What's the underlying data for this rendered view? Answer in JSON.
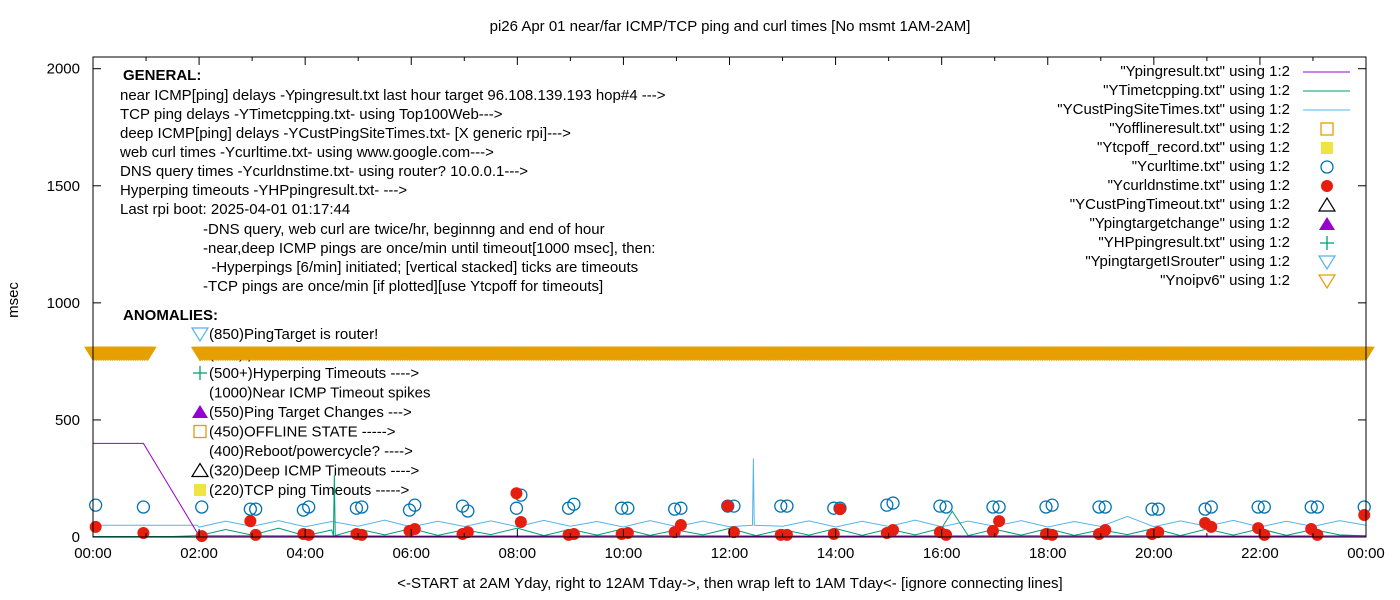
{
  "chart_data": {
    "type": "line",
    "title": "pi26 Apr 01  near/far ICMP/TCP ping and curl times [No msmt 1AM-2AM]",
    "xlabel": "<-START at 2AM Yday, right to 12AM Tday->, then wrap left to 1AM Tday<- [ignore connecting lines]",
    "ylabel": "msec",
    "xlim": [
      "00:00",
      "24:00"
    ],
    "ylim": [
      0,
      2050
    ],
    "x_ticks": [
      "00:00",
      "02:00",
      "04:00",
      "06:00",
      "08:00",
      "10:00",
      "12:00",
      "14:00",
      "16:00",
      "18:00",
      "20:00",
      "22:00",
      "00:00"
    ],
    "y_ticks": [
      0,
      500,
      1000,
      1500,
      2000
    ],
    "grid": false,
    "legend_placement": "top-right",
    "colors": {
      "ypingresult": "#9400d3",
      "ytimetcpping": "#009e73",
      "ycustpingsitetimes": "#56b4e9",
      "yofflineresult": "#e69f00",
      "ytcpoff": "#f0e442",
      "ycurltime": "#0072b2",
      "ycurldnstime": "#e51e10",
      "ycustpingtimeout": "#000000",
      "ypingtargetchange": "#9400d3",
      "yhppingresult": "#009e73",
      "ypingtargetisrouter": "#56b4e9",
      "ynoipv6": "#e69f00"
    },
    "legend": [
      {
        "label": "\"Ypingresult.txt\" using 1:2",
        "style": "line",
        "color": "#9400d3"
      },
      {
        "label": "\"YTimetcpping.txt\" using 1:2",
        "style": "line",
        "color": "#009e73"
      },
      {
        "label": "\"YCustPingSiteTimes.txt\" using 1:2",
        "style": "line",
        "color": "#56b4e9"
      },
      {
        "label": "\"Yofflineresult.txt\" using 1:2",
        "style": "open-square",
        "color": "#e69f00"
      },
      {
        "label": "\"Ytcpoff_record.txt\" using 1:2",
        "style": "filled-square",
        "color": "#f0e442"
      },
      {
        "label": "\"Ycurltime.txt\" using 1:2",
        "style": "open-circle",
        "color": "#0072b2"
      },
      {
        "label": "\"Ycurldnstime.txt\" using 1:2",
        "style": "filled-circle",
        "color": "#e51e10"
      },
      {
        "label": "\"YCustPingTimeout.txt\" using 1:2",
        "style": "open-triangle",
        "color": "#000000"
      },
      {
        "label": "\"Ypingtargetchange\" using 1:2",
        "style": "filled-triangle",
        "color": "#9400d3"
      },
      {
        "label": "\"YHPpingresult.txt\" using 1:2",
        "style": "plus",
        "color": "#009e73"
      },
      {
        "label": "\"YpingtargetISrouter\" using 1:2",
        "style": "open-down-triangle",
        "color": "#56b4e9"
      },
      {
        "label": "\"Ynoipv6\" using 1:2",
        "style": "open-down-triangle",
        "color": "#e69f00"
      }
    ],
    "series": {
      "ypingresult": [
        [
          "00:00",
          400
        ],
        [
          "00:57",
          400
        ],
        [
          "02:00",
          5
        ],
        [
          "06:00",
          4
        ],
        [
          "10:00",
          5
        ],
        [
          "14:00",
          4
        ],
        [
          "18:00",
          5
        ],
        [
          "22:00",
          4
        ],
        [
          "24:00",
          5
        ]
      ],
      "ytimetcpping": [
        [
          "00:00",
          2
        ],
        [
          "01:30",
          2
        ],
        [
          "02:00",
          6
        ],
        [
          "02:30",
          32
        ],
        [
          "03:00",
          8
        ],
        [
          "03:30",
          38
        ],
        [
          "04:00",
          5
        ],
        [
          "04:30",
          30
        ],
        [
          "04:32",
          6
        ],
        [
          "04:33",
          265
        ],
        [
          "04:34",
          6
        ],
        [
          "05:00",
          34
        ],
        [
          "05:30",
          9
        ],
        [
          "06:00",
          36
        ],
        [
          "06:30",
          7
        ],
        [
          "07:00",
          31
        ],
        [
          "07:30",
          10
        ],
        [
          "08:00",
          38
        ],
        [
          "08:30",
          6
        ],
        [
          "09:00",
          33
        ],
        [
          "09:30",
          8
        ],
        [
          "10:00",
          35
        ],
        [
          "10:30",
          7
        ],
        [
          "11:00",
          30
        ],
        [
          "11:30",
          9
        ],
        [
          "12:00",
          37
        ],
        [
          "12:30",
          6
        ],
        [
          "13:00",
          32
        ],
        [
          "13:30",
          8
        ],
        [
          "14:00",
          36
        ],
        [
          "14:30",
          7
        ],
        [
          "15:00",
          34
        ],
        [
          "15:30",
          9
        ],
        [
          "16:00",
          38
        ],
        [
          "16:12",
          110
        ],
        [
          "16:30",
          6
        ],
        [
          "17:00",
          33
        ],
        [
          "17:30",
          8
        ],
        [
          "18:00",
          36
        ],
        [
          "18:30",
          7
        ],
        [
          "19:00",
          31
        ],
        [
          "19:30",
          10
        ],
        [
          "20:00",
          37
        ],
        [
          "20:30",
          6
        ],
        [
          "21:00",
          34
        ],
        [
          "21:30",
          8
        ],
        [
          "22:00",
          35
        ],
        [
          "22:30",
          7
        ],
        [
          "23:00",
          32
        ],
        [
          "23:30",
          9
        ],
        [
          "24:00",
          5
        ]
      ],
      "ycustpingsitetimes": [
        [
          "00:00",
          50
        ],
        [
          "01:58",
          50
        ],
        [
          "02:00",
          42
        ],
        [
          "02:30",
          68
        ],
        [
          "03:00",
          45
        ],
        [
          "03:30",
          70
        ],
        [
          "04:00",
          44
        ],
        [
          "04:30",
          66
        ],
        [
          "05:00",
          46
        ],
        [
          "05:30",
          72
        ],
        [
          "06:00",
          43
        ],
        [
          "06:30",
          67
        ],
        [
          "07:00",
          45
        ],
        [
          "07:30",
          69
        ],
        [
          "08:00",
          44
        ],
        [
          "08:30",
          71
        ],
        [
          "09:00",
          46
        ],
        [
          "09:30",
          66
        ],
        [
          "10:00",
          43
        ],
        [
          "10:30",
          70
        ],
        [
          "11:00",
          45
        ],
        [
          "11:30",
          68
        ],
        [
          "12:00",
          44
        ],
        [
          "12:26",
          50
        ],
        [
          "12:27",
          335
        ],
        [
          "12:28",
          50
        ],
        [
          "13:00",
          46
        ],
        [
          "13:30",
          69
        ],
        [
          "14:00",
          43
        ],
        [
          "14:30",
          67
        ],
        [
          "15:00",
          45
        ],
        [
          "15:30",
          72
        ],
        [
          "16:00",
          44
        ],
        [
          "16:30",
          68
        ],
        [
          "17:00",
          46
        ],
        [
          "17:30",
          70
        ],
        [
          "18:00",
          43
        ],
        [
          "18:30",
          66
        ],
        [
          "19:00",
          45
        ],
        [
          "19:30",
          88
        ],
        [
          "20:00",
          44
        ],
        [
          "20:30",
          69
        ],
        [
          "21:00",
          46
        ],
        [
          "21:30",
          71
        ],
        [
          "22:00",
          43
        ],
        [
          "22:30",
          67
        ],
        [
          "23:00",
          45
        ],
        [
          "23:30",
          70
        ],
        [
          "24:00",
          50
        ]
      ],
      "ycurltime": [
        [
          "00:03",
          136
        ],
        [
          "00:57",
          128
        ],
        [
          "02:03",
          128
        ],
        [
          "02:58",
          119
        ],
        [
          "03:04",
          119
        ],
        [
          "03:58",
          115
        ],
        [
          "04:04",
          128
        ],
        [
          "04:58",
          123
        ],
        [
          "05:04",
          128
        ],
        [
          "05:58",
          115
        ],
        [
          "06:04",
          136
        ],
        [
          "06:58",
          132
        ],
        [
          "07:04",
          111
        ],
        [
          "07:59",
          123
        ],
        [
          "08:04",
          179
        ],
        [
          "08:58",
          123
        ],
        [
          "09:04",
          140
        ],
        [
          "09:58",
          123
        ],
        [
          "10:05",
          123
        ],
        [
          "10:58",
          119
        ],
        [
          "11:05",
          123
        ],
        [
          "11:58",
          132
        ],
        [
          "12:05",
          132
        ],
        [
          "12:58",
          132
        ],
        [
          "13:05",
          132
        ],
        [
          "13:58",
          123
        ],
        [
          "14:05",
          123
        ],
        [
          "14:58",
          136
        ],
        [
          "15:05",
          145
        ],
        [
          "15:58",
          132
        ],
        [
          "16:05",
          128
        ],
        [
          "16:58",
          128
        ],
        [
          "17:05",
          128
        ],
        [
          "17:58",
          128
        ],
        [
          "18:05",
          136
        ],
        [
          "18:58",
          128
        ],
        [
          "19:05",
          128
        ],
        [
          "19:58",
          119
        ],
        [
          "20:05",
          119
        ],
        [
          "20:58",
          119
        ],
        [
          "21:05",
          128
        ],
        [
          "21:58",
          128
        ],
        [
          "22:05",
          128
        ],
        [
          "22:58",
          128
        ],
        [
          "23:05",
          128
        ],
        [
          "23:58",
          128
        ]
      ],
      "ycurldnstime": [
        [
          "00:03",
          43
        ],
        [
          "00:57",
          17
        ],
        [
          "02:03",
          4
        ],
        [
          "02:58",
          68
        ],
        [
          "03:04",
          9
        ],
        [
          "03:58",
          13
        ],
        [
          "04:04",
          9
        ],
        [
          "04:58",
          13
        ],
        [
          "05:04",
          9
        ],
        [
          "05:58",
          26
        ],
        [
          "06:04",
          34
        ],
        [
          "06:58",
          13
        ],
        [
          "07:04",
          21
        ],
        [
          "07:59",
          187
        ],
        [
          "08:04",
          64
        ],
        [
          "08:58",
          9
        ],
        [
          "09:04",
          13
        ],
        [
          "09:58",
          13
        ],
        [
          "10:05",
          17
        ],
        [
          "10:58",
          21
        ],
        [
          "11:05",
          51
        ],
        [
          "11:58",
          132
        ],
        [
          "12:05",
          21
        ],
        [
          "12:58",
          9
        ],
        [
          "13:05",
          9
        ],
        [
          "13:58",
          13
        ],
        [
          "14:05",
          119
        ],
        [
          "14:58",
          17
        ],
        [
          "15:05",
          30
        ],
        [
          "15:58",
          21
        ],
        [
          "16:05",
          9
        ],
        [
          "16:58",
          26
        ],
        [
          "17:05",
          68
        ],
        [
          "17:58",
          13
        ],
        [
          "18:05",
          9
        ],
        [
          "18:58",
          13
        ],
        [
          "19:05",
          30
        ],
        [
          "19:58",
          13
        ],
        [
          "20:05",
          21
        ],
        [
          "20:58",
          60
        ],
        [
          "21:05",
          43
        ],
        [
          "21:58",
          38
        ],
        [
          "22:05",
          9
        ],
        [
          "22:58",
          34
        ],
        [
          "23:05",
          9
        ],
        [
          "23:58",
          94
        ]
      ],
      "ynoipv6": {
        "value": 785,
        "ranges": [
          [
            "00:00",
            "01:03"
          ],
          [
            "02:02",
            "24:00"
          ]
        ]
      }
    }
  },
  "annotations": {
    "general_header": "GENERAL:",
    "general_lines": [
      "near ICMP[ping] delays -Ypingresult.txt last hour target 96.108.139.193 hop#4 --->",
      "TCP ping delays -YTimetcpping.txt- using Top100Web--->",
      "deep ICMP[ping] delays -YCustPingSiteTimes.txt- [X generic rpi]--->",
      "web curl times -Ycurltime.txt- using www.google.com--->",
      "DNS query times -Ycurldnstime.txt- using router? 10.0.0.1--->",
      "Hyperping timeouts -YHPpingresult.txt- --->",
      "Last rpi boot: 2025-04-01 01:17:44"
    ],
    "notes": [
      "-DNS query, web curl are twice/hr, beginnng and end of hour",
      "-near,deep ICMP pings are once/min until timeout[1000 msec], then:",
      "  -Hyperpings [6/min] initiated; [vertical stacked] ticks are timeouts",
      "-TCP pings are once/min [if plotted][use Ytcpoff for timeouts]"
    ],
    "anomalies_header": "ANOMALIES:",
    "anomalies": [
      {
        "label": "(850)PingTarget is router!",
        "marker": "open-down-triangle",
        "color": "#56b4e9"
      },
      {
        "label": "(785)ipv6 failed",
        "marker": "open-down-triangle",
        "color": "#e69f00"
      },
      {
        "label": "(500+)Hyperping Timeouts ---->",
        "marker": "plus",
        "color": "#009e73"
      },
      {
        "label": "(1000)Near ICMP Timeout spikes",
        "marker": "none",
        "color": ""
      },
      {
        "label": "(550)Ping Target Changes --->",
        "marker": "filled-triangle",
        "color": "#9400d3"
      },
      {
        "label": "(450)OFFLINE STATE ----->",
        "marker": "open-square",
        "color": "#e69f00"
      },
      {
        "label": "(400)Reboot/powercycle? ---->",
        "marker": "none",
        "color": ""
      },
      {
        "label": "(320)Deep ICMP Timeouts ---->",
        "marker": "open-triangle",
        "color": "#000000"
      },
      {
        "label": "(220)TCP ping Timeouts ----->",
        "marker": "filled-square",
        "color": "#f0e442"
      }
    ]
  }
}
